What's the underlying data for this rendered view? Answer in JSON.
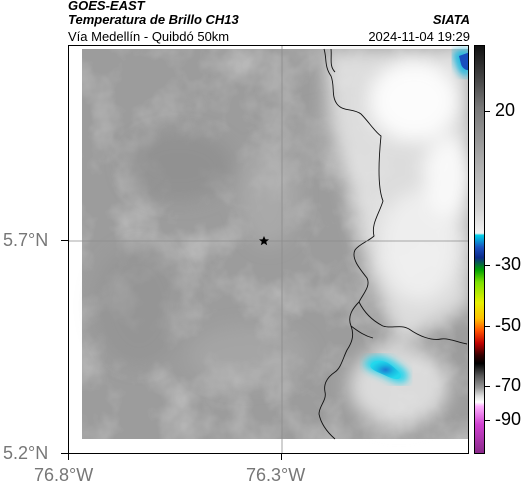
{
  "header": {
    "source": "GOES-EAST",
    "product": "Temperatura de Brillo CH13",
    "credit": "SIATA",
    "region": "Vía Medellín - Quibdó 50km",
    "timestamp": "2024-11-04 19:29"
  },
  "map": {
    "x_ticks": [
      "76.8°W",
      "76.3°W"
    ],
    "y_ticks": [
      "5.7°N",
      "5.2°N"
    ],
    "marker": "star-icon",
    "background": "#9c9c9c"
  },
  "colorbar": {
    "ticks": [
      "20",
      "-30",
      "-50",
      "-70",
      "-90"
    ],
    "colors": {
      "warm": "#111111",
      "cold_cyan": "#00d0e8",
      "cold_blue": "#0b2a8a",
      "green": "#00a000",
      "yellow": "#e6f000",
      "red": "#c00000",
      "magenta": "#d040d0"
    }
  }
}
